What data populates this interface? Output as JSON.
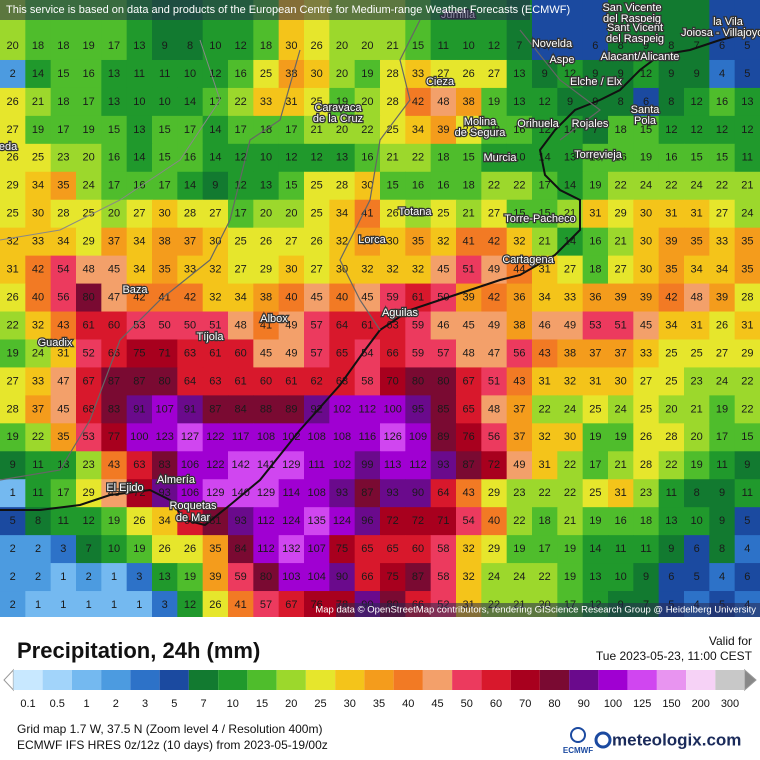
{
  "header": {
    "notice": "This service is based on data and products of the European Centre for Medium-range Weather Forecasts (ECMWF)"
  },
  "map": {
    "grid": [
      [
        20,
        18,
        18,
        19,
        17,
        13,
        9,
        8,
        10,
        12,
        18,
        30,
        26,
        20,
        20,
        21,
        15,
        11,
        10,
        12,
        7,
        6,
        5,
        6,
        8,
        9,
        8,
        7,
        6,
        5
      ],
      [
        2,
        14,
        15,
        16,
        13,
        11,
        11,
        10,
        12,
        16,
        25,
        38,
        30,
        20,
        19,
        28,
        33,
        27,
        26,
        27,
        13,
        9,
        12,
        9,
        9,
        12,
        9,
        9,
        4,
        5
      ],
      [
        26,
        21,
        18,
        17,
        13,
        10,
        10,
        14,
        17,
        22,
        33,
        31,
        25,
        19,
        20,
        28,
        42,
        48,
        38,
        19,
        13,
        12,
        9,
        9,
        8,
        6,
        8,
        12,
        16,
        13
      ],
      [
        27,
        19,
        17,
        19,
        15,
        13,
        15,
        17,
        14,
        17,
        18,
        17,
        21,
        20,
        22,
        25,
        34,
        39,
        27,
        18,
        16,
        12,
        14,
        7,
        18,
        15,
        12,
        12,
        12,
        12
      ],
      [
        26,
        25,
        23,
        20,
        16,
        14,
        15,
        16,
        14,
        12,
        10,
        12,
        12,
        13,
        16,
        21,
        22,
        18,
        15,
        12,
        10,
        14,
        13,
        15,
        16,
        19,
        16,
        15,
        15,
        11
      ],
      [
        29,
        34,
        35,
        24,
        17,
        16,
        17,
        14,
        9,
        12,
        13,
        15,
        25,
        28,
        30,
        15,
        16,
        16,
        18,
        22,
        22,
        17,
        14,
        19,
        22,
        24,
        22,
        24,
        22,
        21
      ],
      [
        25,
        30,
        28,
        25,
        20,
        27,
        30,
        28,
        27,
        17,
        20,
        20,
        25,
        34,
        41,
        26,
        22,
        25,
        21,
        27,
        15,
        15,
        21,
        31,
        29,
        30,
        31,
        31,
        27,
        24
      ],
      [
        32,
        33,
        34,
        29,
        37,
        34,
        38,
        37,
        30,
        25,
        26,
        27,
        26,
        32,
        36,
        30,
        35,
        32,
        41,
        42,
        32,
        21,
        14,
        16,
        21,
        30,
        39,
        35,
        33,
        35
      ],
      [
        31,
        42,
        54,
        48,
        45,
        34,
        35,
        33,
        32,
        27,
        29,
        30,
        27,
        30,
        32,
        32,
        32,
        45,
        51,
        49,
        44,
        31,
        27,
        18,
        27,
        30,
        35,
        34,
        34,
        35
      ],
      [
        26,
        40,
        56,
        80,
        47,
        42,
        41,
        42,
        32,
        34,
        38,
        40,
        45,
        40,
        45,
        59,
        61,
        50,
        39,
        42,
        36,
        34,
        33,
        36,
        39,
        39,
        42,
        48,
        39,
        28
      ],
      [
        22,
        32,
        43,
        61,
        60,
        53,
        50,
        50,
        51,
        48,
        41,
        49,
        57,
        64,
        61,
        63,
        59,
        46,
        45,
        49,
        38,
        46,
        49,
        53,
        51,
        45,
        34,
        31,
        26,
        31
      ],
      [
        19,
        24,
        31,
        52,
        66,
        75,
        71,
        63,
        61,
        60,
        45,
        49,
        57,
        65,
        54,
        66,
        59,
        57,
        48,
        47,
        56,
        43,
        38,
        37,
        37,
        33,
        25,
        25,
        27,
        29
      ],
      [
        27,
        33,
        47,
        67,
        87,
        87,
        80,
        64,
        63,
        61,
        60,
        61,
        62,
        63,
        58,
        70,
        80,
        80,
        67,
        51,
        43,
        31,
        32,
        31,
        30,
        27,
        25,
        23,
        24,
        22
      ],
      [
        28,
        37,
        45,
        68,
        83,
        91,
        107,
        91,
        87,
        84,
        88,
        89,
        92,
        102,
        112,
        100,
        95,
        85,
        65,
        48,
        37,
        22,
        24,
        25,
        24,
        25,
        20,
        21,
        19,
        22
      ],
      [
        19,
        22,
        35,
        53,
        77,
        100,
        123,
        127,
        122,
        117,
        108,
        102,
        108,
        108,
        116,
        126,
        109,
        89,
        76,
        56,
        37,
        32,
        30,
        19,
        19,
        26,
        28,
        20,
        17,
        15
      ],
      [
        9,
        11,
        13,
        23,
        43,
        63,
        83,
        106,
        122,
        142,
        141,
        129,
        111,
        102,
        99,
        113,
        112,
        93,
        87,
        72,
        49,
        31,
        22,
        17,
        21,
        28,
        22,
        19,
        11,
        9
      ],
      [
        1,
        11,
        17,
        29,
        45,
        72,
        93,
        106,
        129,
        140,
        129,
        114,
        108,
        93,
        87,
        93,
        90,
        64,
        43,
        29,
        23,
        22,
        22,
        25,
        31,
        23,
        11,
        8,
        9,
        11
      ],
      [
        5,
        8,
        11,
        12,
        19,
        26,
        34,
        60,
        81,
        93,
        112,
        124,
        135,
        124,
        96,
        72,
        72,
        71,
        54,
        40,
        22,
        18,
        21,
        19,
        16,
        18,
        13,
        10,
        9,
        5
      ],
      [
        2,
        2,
        3,
        7,
        10,
        19,
        26,
        26,
        35,
        84,
        112,
        132,
        107,
        75,
        65,
        65,
        60,
        58,
        32,
        29,
        19,
        17,
        19,
        14,
        11,
        11,
        9,
        6,
        8,
        4
      ],
      [
        2,
        2,
        1,
        2,
        1,
        3,
        13,
        19,
        39,
        59,
        80,
        103,
        104,
        90,
        66,
        75,
        87,
        58,
        32,
        24,
        24,
        22,
        19,
        13,
        10,
        9,
        6,
        5,
        4,
        6
      ],
      [
        2,
        1,
        1,
        1,
        1,
        1,
        3,
        12,
        26,
        41,
        57,
        67,
        76,
        78,
        90,
        80,
        66,
        52,
        31,
        22,
        21,
        20,
        17,
        12,
        9,
        7,
        5,
        4,
        5,
        4
      ]
    ],
    "places": [
      "Jumilla",
      "San Vicente",
      "del Raspeig",
      "Sant Vicent",
      "del Raspeig",
      "la Vila",
      "Joiosa - Villajoyosa",
      "Novelda",
      "Aspe",
      "Alacant/Alicante",
      "Elche / Elx",
      "Santa",
      "Pola",
      "Cieza",
      "Caravaca",
      "de la Cruz",
      "Molina",
      "de Segura",
      "Orihuela",
      "Rojales",
      "Murcia",
      "Torrevieja",
      "eda",
      "Totana",
      "Torre-Pacheco",
      "Lorca",
      "Cartagena",
      "Baza",
      "Aguilas",
      "Albox",
      "Tíjola",
      "Guadix",
      "El Ejido",
      "Almería",
      "Roquetas",
      "de Mar"
    ],
    "attribution": "Map data © OpenStreetMap contributors, rendering GIScience Research Group @ Heidelberg University"
  },
  "legend": {
    "title": "Precipitation, 24h (mm)",
    "valid_label": "Valid for",
    "valid_time": "Tue 2023-05-23, 11:00 CEST",
    "scale": [
      {
        "value": 0.1,
        "color": "#c8e8ff"
      },
      {
        "value": 0.5,
        "color": "#a2d4fa"
      },
      {
        "value": 1,
        "color": "#74b9f0"
      },
      {
        "value": 2,
        "color": "#4c9be0"
      },
      {
        "value": 3,
        "color": "#2d72c8"
      },
      {
        "value": 5,
        "color": "#1b4aa0"
      },
      {
        "value": 7,
        "color": "#127a30"
      },
      {
        "value": 10,
        "color": "#20992c"
      },
      {
        "value": 15,
        "color": "#4fbd2c"
      },
      {
        "value": 20,
        "color": "#9cd82c"
      },
      {
        "value": 25,
        "color": "#e6e62c"
      },
      {
        "value": 30,
        "color": "#f4c41a"
      },
      {
        "value": 35,
        "color": "#f49c1c"
      },
      {
        "value": 40,
        "color": "#f27a24"
      },
      {
        "value": 45,
        "color": "#f3a06a"
      },
      {
        "value": 50,
        "color": "#ec3a5e"
      },
      {
        "value": 60,
        "color": "#d8182c"
      },
      {
        "value": 70,
        "color": "#a8001e"
      },
      {
        "value": 80,
        "color": "#7a0a32"
      },
      {
        "value": 90,
        "color": "#6a0a8c"
      },
      {
        "value": 100,
        "color": "#a000d2"
      },
      {
        "value": 125,
        "color": "#d046f0"
      },
      {
        "value": 150,
        "color": "#e894f0"
      },
      {
        "value": 200,
        "color": "#f6d2f6"
      },
      {
        "value": 300,
        "color": "#c8c8c8"
      }
    ]
  },
  "footer": {
    "grid_info": "Grid map 1.7 W, 37.5 N (Zoom level 4 / Resolution 400m)",
    "model_info": "ECMWF IFS HRES 0z/12z (10 days) from 2023-05-19/00z",
    "ecmwf_logo": "ECMWF",
    "brand": "meteologix.com"
  }
}
